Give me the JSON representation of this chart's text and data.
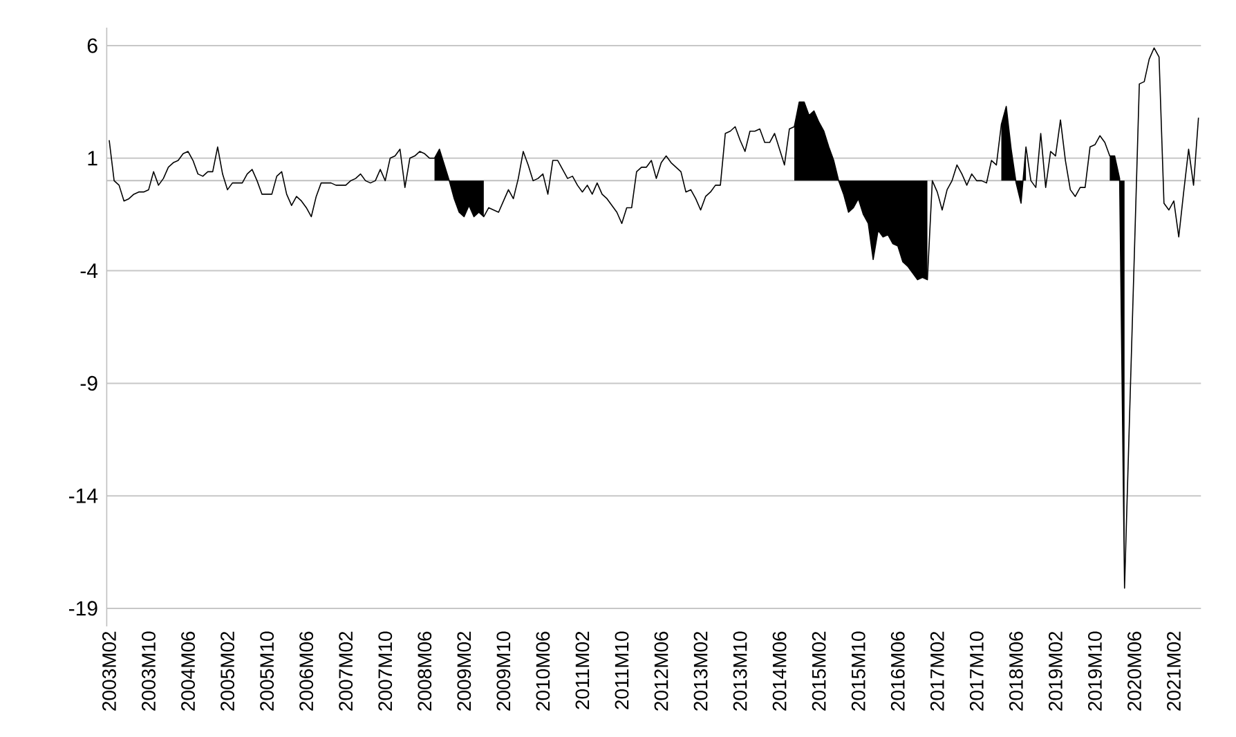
{
  "chart_data": {
    "type": "line",
    "categories": [
      "2003M02",
      null,
      null,
      null,
      null,
      null,
      null,
      null,
      "2003M10",
      null,
      null,
      null,
      null,
      null,
      null,
      null,
      "2004M06",
      null,
      null,
      null,
      null,
      null,
      null,
      null,
      "2005M02",
      null,
      null,
      null,
      null,
      null,
      null,
      null,
      "2005M10",
      null,
      null,
      null,
      null,
      null,
      null,
      null,
      "2006M06",
      null,
      null,
      null,
      null,
      null,
      null,
      null,
      "2007M02",
      null,
      null,
      null,
      null,
      null,
      null,
      null,
      "2007M10",
      null,
      null,
      null,
      null,
      null,
      null,
      null,
      "2008M06",
      null,
      null,
      null,
      null,
      null,
      null,
      null,
      "2009M02",
      null,
      null,
      null,
      null,
      null,
      null,
      null,
      "2009M10",
      null,
      null,
      null,
      null,
      null,
      null,
      null,
      "2010M06",
      null,
      null,
      null,
      null,
      null,
      null,
      null,
      "2011M02",
      null,
      null,
      null,
      null,
      null,
      null,
      null,
      "2011M10",
      null,
      null,
      null,
      null,
      null,
      null,
      null,
      "2012M06",
      null,
      null,
      null,
      null,
      null,
      null,
      null,
      "2013M02",
      null,
      null,
      null,
      null,
      null,
      null,
      null,
      "2013M10",
      null,
      null,
      null,
      null,
      null,
      null,
      null,
      "2014M06",
      null,
      null,
      null,
      null,
      null,
      null,
      null,
      "2015M02",
      null,
      null,
      null,
      null,
      null,
      null,
      null,
      "2015M10",
      null,
      null,
      null,
      null,
      null,
      null,
      null,
      "2016M06",
      null,
      null,
      null,
      null,
      null,
      null,
      null,
      "2017M02",
      null,
      null,
      null,
      null,
      null,
      null,
      null,
      "2017M10",
      null,
      null,
      null,
      null,
      null,
      null,
      null,
      "2018M06",
      null,
      null,
      null,
      null,
      null,
      null,
      null,
      "2019M02",
      null,
      null,
      null,
      null,
      null,
      null,
      null,
      "2019M10",
      null,
      null,
      null,
      null,
      null,
      null,
      null,
      "2020M06",
      null,
      null,
      null,
      null,
      null,
      null,
      null,
      "2021M02",
      null,
      null,
      null,
      null,
      null
    ],
    "series": [
      {
        "type": "area",
        "color": "#000000",
        "values": [
          null,
          null,
          null,
          null,
          null,
          null,
          null,
          null,
          null,
          null,
          null,
          null,
          null,
          null,
          null,
          null,
          null,
          null,
          null,
          null,
          null,
          null,
          null,
          null,
          null,
          null,
          null,
          null,
          null,
          null,
          null,
          null,
          null,
          null,
          null,
          null,
          null,
          null,
          null,
          null,
          null,
          null,
          null,
          null,
          null,
          null,
          null,
          null,
          null,
          null,
          null,
          null,
          null,
          null,
          null,
          null,
          null,
          null,
          null,
          null,
          null,
          null,
          null,
          null,
          null,
          null,
          1.0,
          1.4,
          0.7,
          0,
          -0.8,
          -1.4,
          -1.6,
          -1.1,
          -1.6,
          -1.4,
          -1.6,
          null,
          null,
          null,
          null,
          null,
          null,
          null,
          null,
          null,
          null,
          null,
          null,
          null,
          null,
          null,
          null,
          null,
          null,
          null,
          null,
          null,
          null,
          null,
          null,
          null,
          null,
          null,
          null,
          null,
          null,
          null,
          null,
          null,
          null,
          null,
          null,
          null,
          null,
          null,
          null,
          null,
          null,
          null,
          null,
          null,
          null,
          null,
          null,
          null,
          null,
          null,
          null,
          null,
          null,
          null,
          null,
          null,
          null,
          null,
          null,
          null,
          null,
          2.4,
          3.5,
          3.5,
          2.9,
          3.1,
          2.6,
          2.2,
          1.5,
          0.9,
          0,
          -0.6,
          -1.4,
          -1.2,
          -0.8,
          -1.5,
          -1.9,
          -3.5,
          -2.2,
          -2.5,
          -2.4,
          -2.8,
          -2.9,
          -3.6,
          -3.8,
          -4.1,
          -4.4,
          -4.3,
          -4.4,
          null,
          null,
          null,
          null,
          null,
          null,
          null,
          null,
          null,
          null,
          null,
          null,
          null,
          null,
          2.5,
          3.3,
          1.4,
          -0.1,
          -1.0,
          1.5,
          null,
          null,
          null,
          null,
          null,
          null,
          null,
          null,
          null,
          null,
          null,
          null,
          null,
          null,
          null,
          null,
          1.1,
          1.1,
          0.1,
          -18.1,
          null,
          null,
          null,
          null,
          null,
          null,
          null,
          null,
          null,
          null,
          null,
          null,
          null,
          null,
          null
        ]
      },
      {
        "color": "#000000",
        "values": [
          1.8,
          0,
          -0.2,
          -0.9,
          -0.8,
          -0.6,
          -0.5,
          -0.5,
          -0.4,
          0.4,
          -0.2,
          0.1,
          0.6,
          0.8,
          0.9,
          1.2,
          1.3,
          0.9,
          0.3,
          0.2,
          0.4,
          0.4,
          1.5,
          0.3,
          -0.4,
          -0.1,
          -0.1,
          -0.1,
          0.3,
          0.5,
          0,
          -0.6,
          -0.6,
          -0.6,
          0.2,
          0.4,
          -0.6,
          -1.1,
          -0.7,
          -0.9,
          -1.2,
          -1.6,
          -0.7,
          -0.1,
          -0.1,
          -0.1,
          -0.2,
          -0.2,
          -0.2,
          0,
          0.1,
          0.3,
          0,
          -0.1,
          0,
          0.5,
          0,
          1.0,
          1.1,
          1.4,
          -0.3,
          1.0,
          1.1,
          1.3,
          1.2,
          1.0,
          1.0,
          1.4,
          0.7,
          0,
          -0.8,
          -1.4,
          -1.6,
          -1.1,
          -1.6,
          -1.4,
          -1.6,
          -1.2,
          -1.3,
          -1.4,
          -0.9,
          -0.4,
          -0.8,
          0.1,
          1.3,
          0.7,
          0,
          0.1,
          0.3,
          -0.6,
          0.9,
          0.9,
          0.5,
          0.1,
          0.2,
          -0.2,
          -0.5,
          -0.2,
          -0.6,
          -0.1,
          -0.6,
          -0.8,
          -1.1,
          -1.4,
          -1.9,
          -1.2,
          -1.2,
          0.4,
          0.6,
          0.6,
          0.9,
          0.1,
          0.8,
          1.1,
          0.8,
          0.6,
          0.4,
          -0.5,
          -0.4,
          -0.8,
          -1.3,
          -0.7,
          -0.5,
          -0.2,
          -0.2,
          2.1,
          2.2,
          2.4,
          1.8,
          1.3,
          2.2,
          2.2,
          2.3,
          1.7,
          1.7,
          2.1,
          1.4,
          0.7,
          2.3,
          2.4,
          3.5,
          3.5,
          2.9,
          3.1,
          2.6,
          2.2,
          1.5,
          0.9,
          0,
          -0.6,
          -1.4,
          -1.2,
          -0.8,
          -1.5,
          -1.9,
          -3.5,
          -2.2,
          -2.5,
          -2.4,
          -2.8,
          -2.9,
          -3.6,
          -3.8,
          -4.1,
          -4.4,
          -4.3,
          -4.4,
          0,
          -0.5,
          -1.3,
          -0.4,
          0,
          0.7,
          0.3,
          -0.2,
          0.3,
          0,
          0,
          -0.1,
          0.9,
          0.7,
          2.5,
          3.3,
          1.4,
          -0.1,
          -1.0,
          1.5,
          0,
          -0.3,
          2.1,
          -0.3,
          1.3,
          1.1,
          2.7,
          0.9,
          -0.4,
          -0.7,
          -0.3,
          -0.3,
          1.5,
          1.6,
          2.0,
          1.7,
          1.1,
          1.1,
          0.1,
          -18.1,
          -10.6,
          -3.2,
          4.3,
          4.4,
          5.4,
          5.9,
          5.5,
          -1.0,
          -1.3,
          -0.9,
          -2.5,
          -0.5,
          1.4,
          -0.2,
          2.8
        ]
      }
    ],
    "ylim": [
      -19.8,
      6.8
    ],
    "yticks": [
      -19,
      -14,
      -9,
      -4,
      1,
      6
    ],
    "grid": "y",
    "marker": "none",
    "line_style": "solid"
  }
}
